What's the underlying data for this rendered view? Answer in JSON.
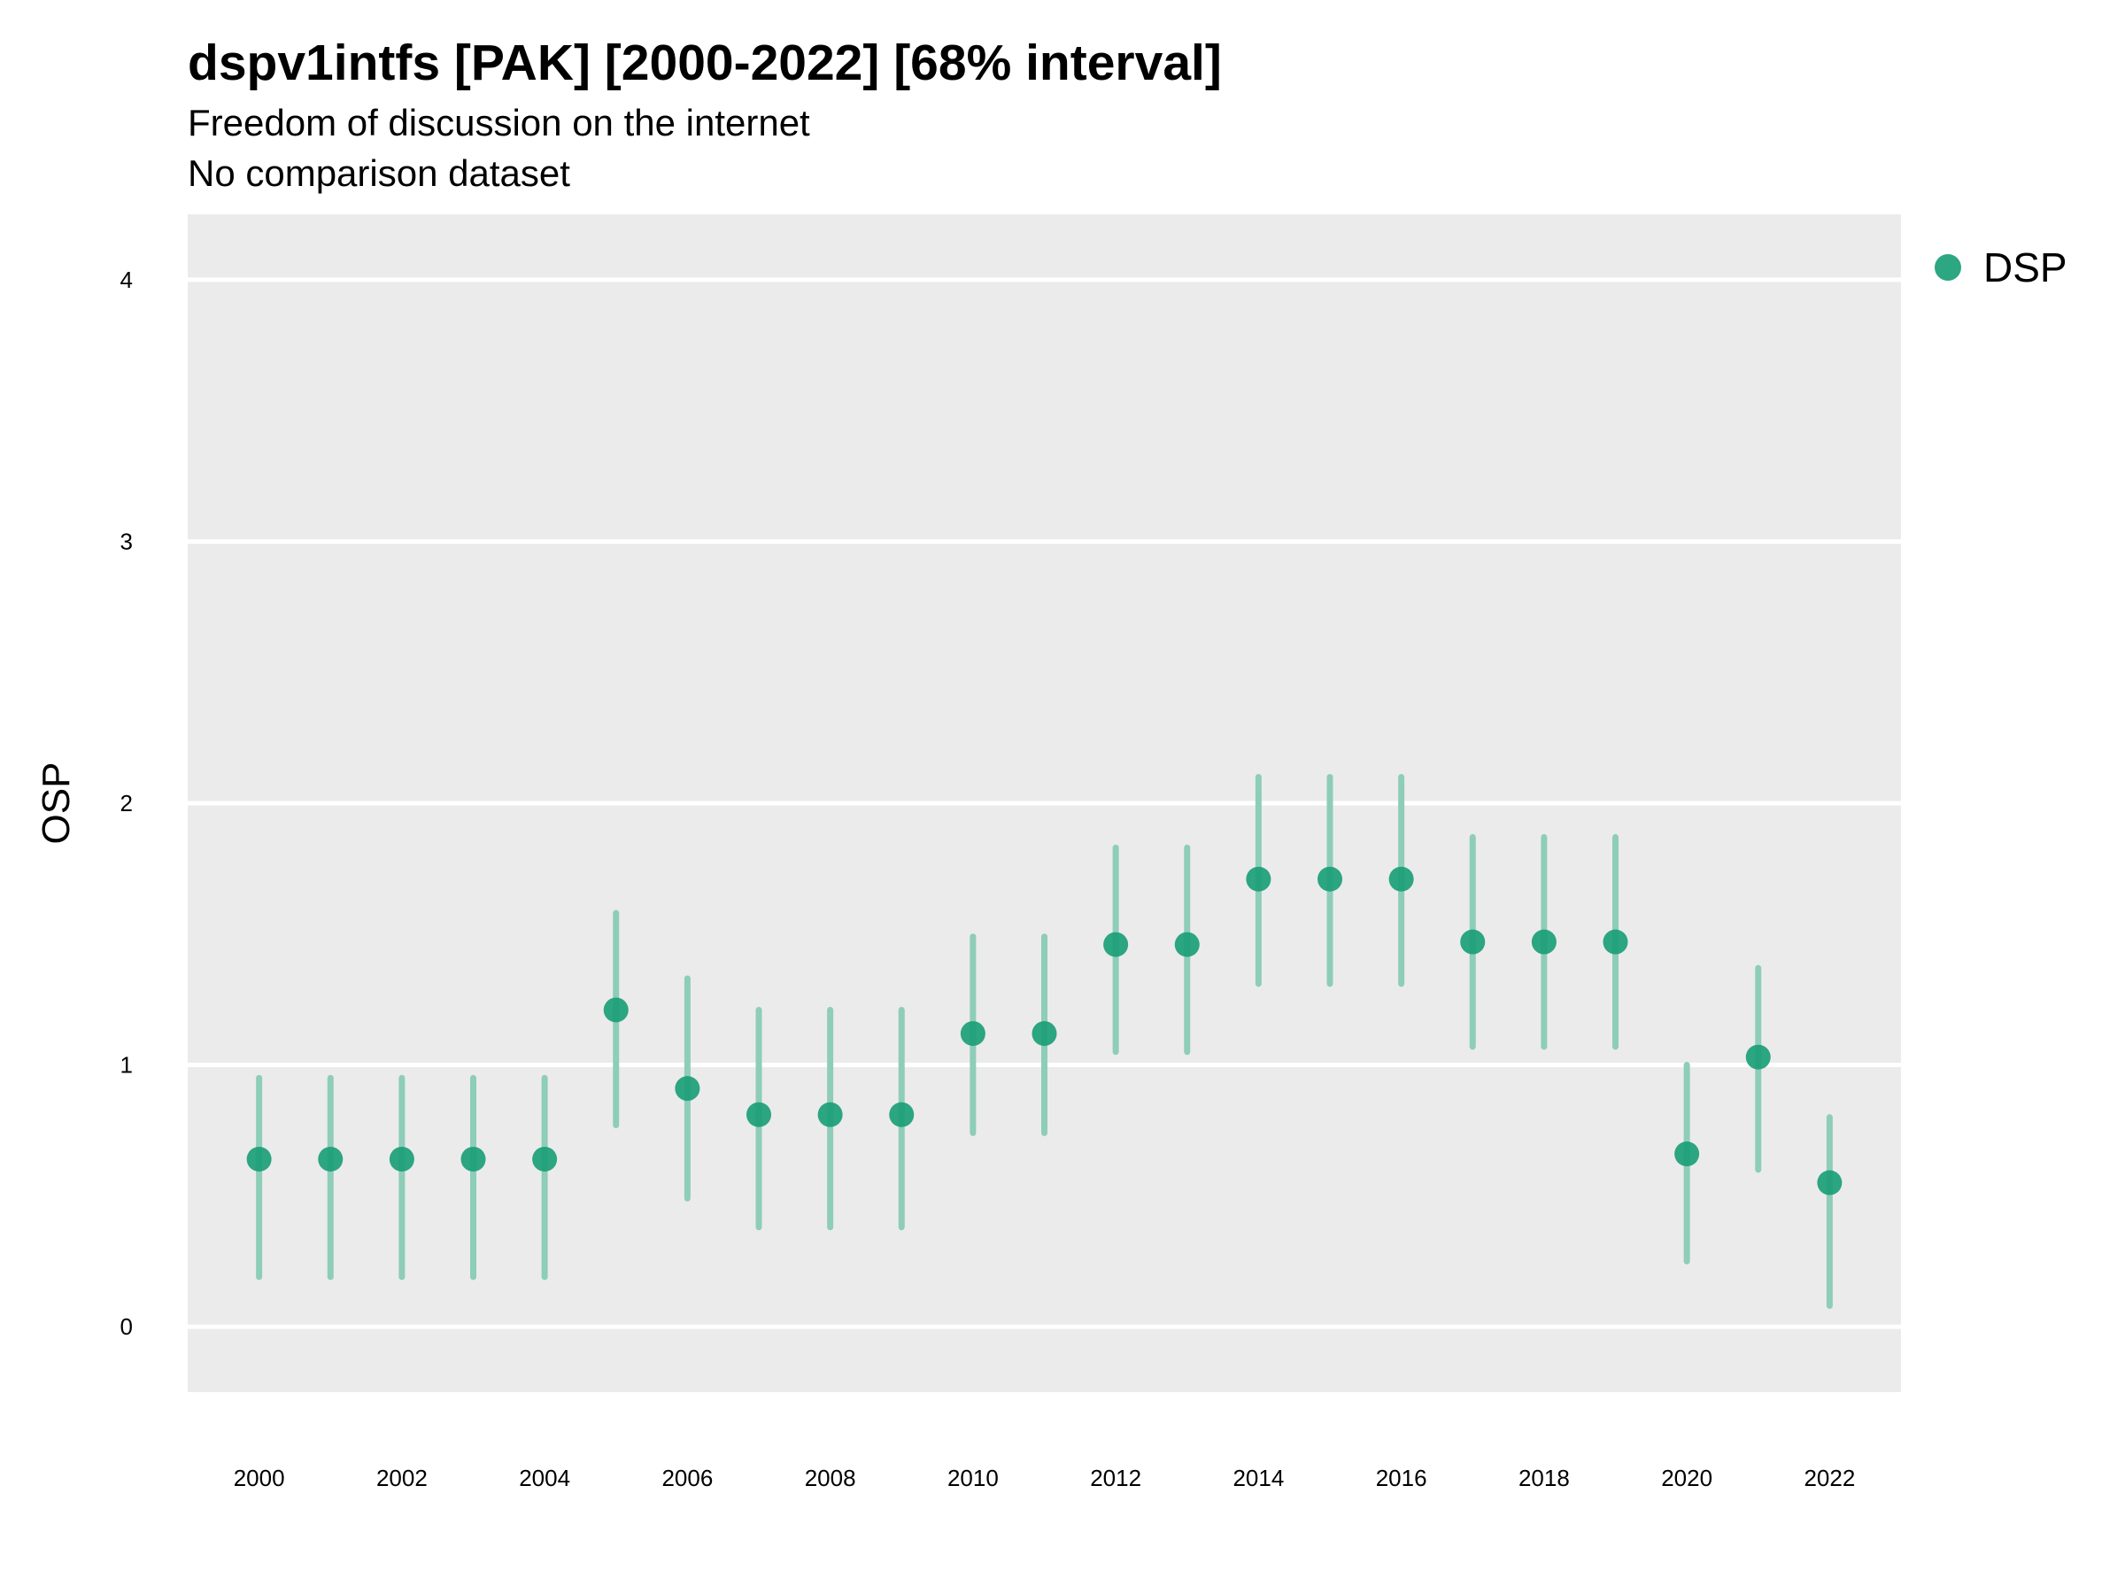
{
  "title": "dspv1intfs [PAK] [2000-2022] [68% interval]",
  "subtitle": "Freedom of discussion on the internet",
  "caption": "No comparison dataset",
  "chart_data": {
    "type": "scatter",
    "xlabel": "",
    "ylabel": "OSP",
    "xlim": [
      1999,
      2023
    ],
    "ylim": [
      -0.25,
      4.25
    ],
    "x_ticks": [
      2000,
      2002,
      2004,
      2006,
      2008,
      2010,
      2012,
      2014,
      2016,
      2018,
      2020,
      2022
    ],
    "y_ticks": [
      0,
      1,
      2,
      3,
      4
    ],
    "grid": "horizontal major lines only",
    "legend_position": "right-top",
    "colors": {
      "point": "#1b9e77",
      "interval": "#8ecdb8",
      "panel": "#ebebeb",
      "grid": "#ffffff"
    },
    "series": [
      {
        "name": "DSP",
        "x": [
          2000,
          2001,
          2002,
          2003,
          2004,
          2005,
          2006,
          2007,
          2008,
          2009,
          2010,
          2011,
          2012,
          2013,
          2014,
          2015,
          2016,
          2017,
          2018,
          2019,
          2020,
          2021,
          2022
        ],
        "y": [
          0.64,
          0.64,
          0.64,
          0.64,
          0.64,
          1.21,
          0.91,
          0.81,
          0.81,
          0.81,
          1.12,
          1.12,
          1.46,
          1.46,
          1.71,
          1.71,
          1.71,
          1.47,
          1.47,
          1.47,
          0.66,
          1.03,
          0.55
        ],
        "lower": [
          0.19,
          0.19,
          0.19,
          0.19,
          0.19,
          0.77,
          0.49,
          0.38,
          0.38,
          0.38,
          0.74,
          0.74,
          1.05,
          1.05,
          1.31,
          1.31,
          1.31,
          1.07,
          1.07,
          1.07,
          0.25,
          0.6,
          0.08
        ],
        "upper": [
          0.95,
          0.95,
          0.95,
          0.95,
          0.95,
          1.58,
          1.33,
          1.21,
          1.21,
          1.21,
          1.49,
          1.49,
          1.83,
          1.83,
          2.1,
          2.1,
          2.1,
          1.87,
          1.87,
          1.87,
          1.0,
          1.37,
          0.8
        ]
      }
    ]
  }
}
